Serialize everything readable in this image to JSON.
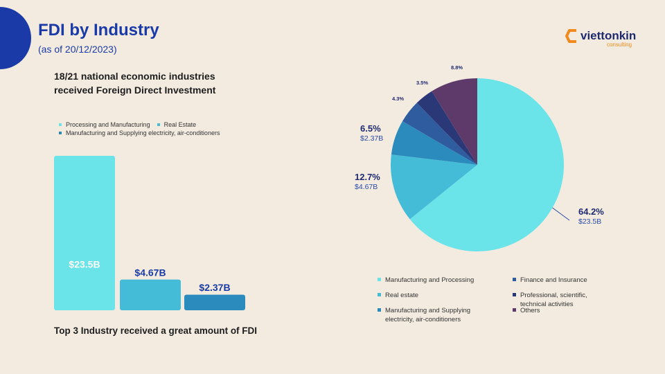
{
  "header": {
    "title": "FDI by Industry",
    "subtitle": "(as of 20/12/2023)"
  },
  "logo": {
    "name": "viettonkin",
    "tagline": "consulting"
  },
  "chart_data": [
    {
      "type": "bar",
      "title": "18/21 national economic industries received Foreign Direct Investment",
      "caption": "Top 3 Industry received a great amount of FDI",
      "categories": [
        "Processing and Manufacturing",
        "Real Estate",
        "Manufacturing and Supplying electricity, air-conditioners"
      ],
      "values": [
        23.5,
        4.67,
        2.37
      ],
      "value_labels": [
        "$23.5B",
        "$4.67B",
        "$2.37B"
      ],
      "colors": [
        "#6ae4e9",
        "#44bcd8",
        "#2c8bbd"
      ]
    },
    {
      "type": "pie",
      "categories": [
        "Manufacturing and Processing",
        "Real estate",
        "Manufacturing and Supplying electricity, air-conditioners",
        "Finance and Insurance",
        "Professional, scientific, technical activities",
        "Others"
      ],
      "values": [
        64.2,
        12.7,
        6.5,
        4.3,
        3.5,
        8.8
      ],
      "value_labels": [
        "64.2%",
        "12.7%",
        "6.5%",
        "4.3%",
        "3.5%",
        "8.8%"
      ],
      "amount_labels": [
        "$23.5B",
        "$4.67B",
        "$2.37B",
        null,
        null,
        null
      ],
      "colors": [
        "#6ae4e9",
        "#44bcd8",
        "#2c8bbd",
        "#2e5c9e",
        "#2a3878",
        "#5e3a6a"
      ]
    }
  ]
}
